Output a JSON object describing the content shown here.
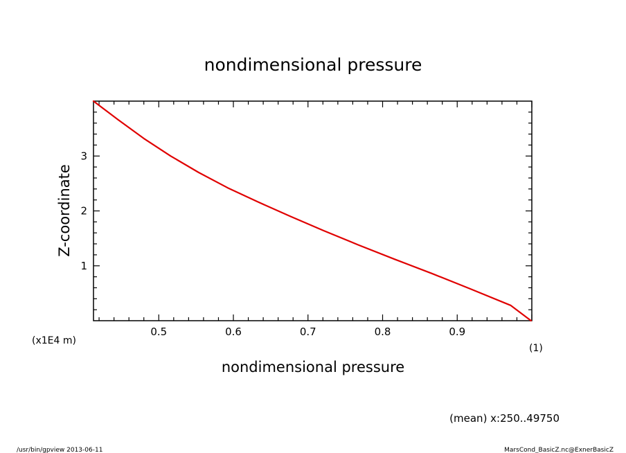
{
  "chart_data": {
    "type": "line",
    "title": "nondimensional pressure",
    "xlabel": "nondimensional pressure",
    "ylabel": "Z-coordinate",
    "x_unit": "(1)",
    "y_unit": "(x1E4 m)",
    "xlim": [
      0.4125,
      1.0
    ],
    "ylim": [
      0,
      4
    ],
    "x_ticks": [
      {
        "value": 0.5,
        "label": "0.5"
      },
      {
        "value": 0.6,
        "label": "0.6"
      },
      {
        "value": 0.7,
        "label": "0.7"
      },
      {
        "value": 0.8,
        "label": "0.8"
      },
      {
        "value": 0.9,
        "label": "0.9"
      }
    ],
    "y_ticks": [
      {
        "value": 1,
        "label": "1"
      },
      {
        "value": 2,
        "label": "2"
      },
      {
        "value": 3,
        "label": "3"
      }
    ],
    "series": [
      {
        "color": "#e00000",
        "x": [
          0.4125,
          0.4455,
          0.48,
          0.516,
          0.5535,
          0.5925,
          0.6335,
          0.6765,
          0.721,
          0.7675,
          0.816,
          0.866,
          0.9175,
          0.9715,
          0.999
        ],
        "y": [
          4.0,
          3.66,
          3.32,
          3.0,
          2.7,
          2.42,
          2.16,
          1.9,
          1.64,
          1.38,
          1.12,
          0.86,
          0.58,
          0.28,
          0.0
        ]
      }
    ],
    "grid": false,
    "legend": "none"
  },
  "annotations": {
    "mean_note": "(mean) x:250..49750",
    "footer_left": "/usr/bin/gpview  2013-06-11",
    "footer_right": "MarsCond_BasicZ.nc@ExnerBasicZ"
  }
}
